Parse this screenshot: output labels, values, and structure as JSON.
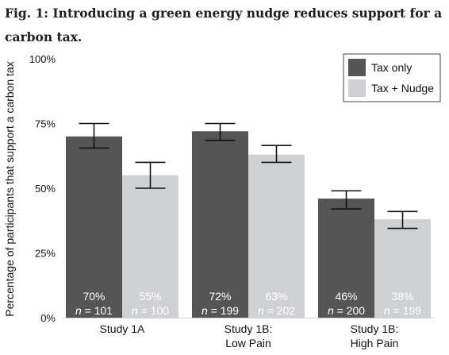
{
  "chart_data": {
    "type": "bar",
    "title": "Fig. 1: Introducing a green energy nudge reduces support for a carbon tax.",
    "ylabel": "Percentage of participants that support a carbon tax",
    "xlabel": "",
    "ylim": [
      0,
      100
    ],
    "yticks": [
      "0%",
      "25%",
      "50%",
      "75%",
      "100%"
    ],
    "ytick_values": [
      0,
      25,
      50,
      75,
      100
    ],
    "legend_position": "top-right",
    "grid": false,
    "categories": [
      {
        "line1": "Study 1A",
        "line2": ""
      },
      {
        "line1": "Study 1B:",
        "line2": "Low Pain"
      },
      {
        "line1": "Study 1B:",
        "line2": "High Pain"
      }
    ],
    "series": [
      {
        "name": "Tax only",
        "color": "#555555",
        "label_color": "#ffffff",
        "values": [
          70,
          72,
          46
        ],
        "value_labels": [
          "70%",
          "72%",
          "46%"
        ],
        "error_low": [
          65.5,
          68.5,
          42
        ],
        "error_high": [
          75,
          75,
          49
        ],
        "n_labels": [
          "n = 101",
          "n = 199",
          "n = 200"
        ]
      },
      {
        "name": "Tax + Nudge",
        "color": "#d0d1d3",
        "label_color": "#ffffff",
        "values": [
          55,
          63,
          38
        ],
        "value_labels": [
          "55%",
          "63%",
          "38%"
        ],
        "error_low": [
          50,
          60,
          34.5
        ],
        "error_high": [
          60,
          66.5,
          41
        ],
        "n_labels": [
          "n = 100",
          "n = 202",
          "n = 199"
        ]
      }
    ]
  }
}
